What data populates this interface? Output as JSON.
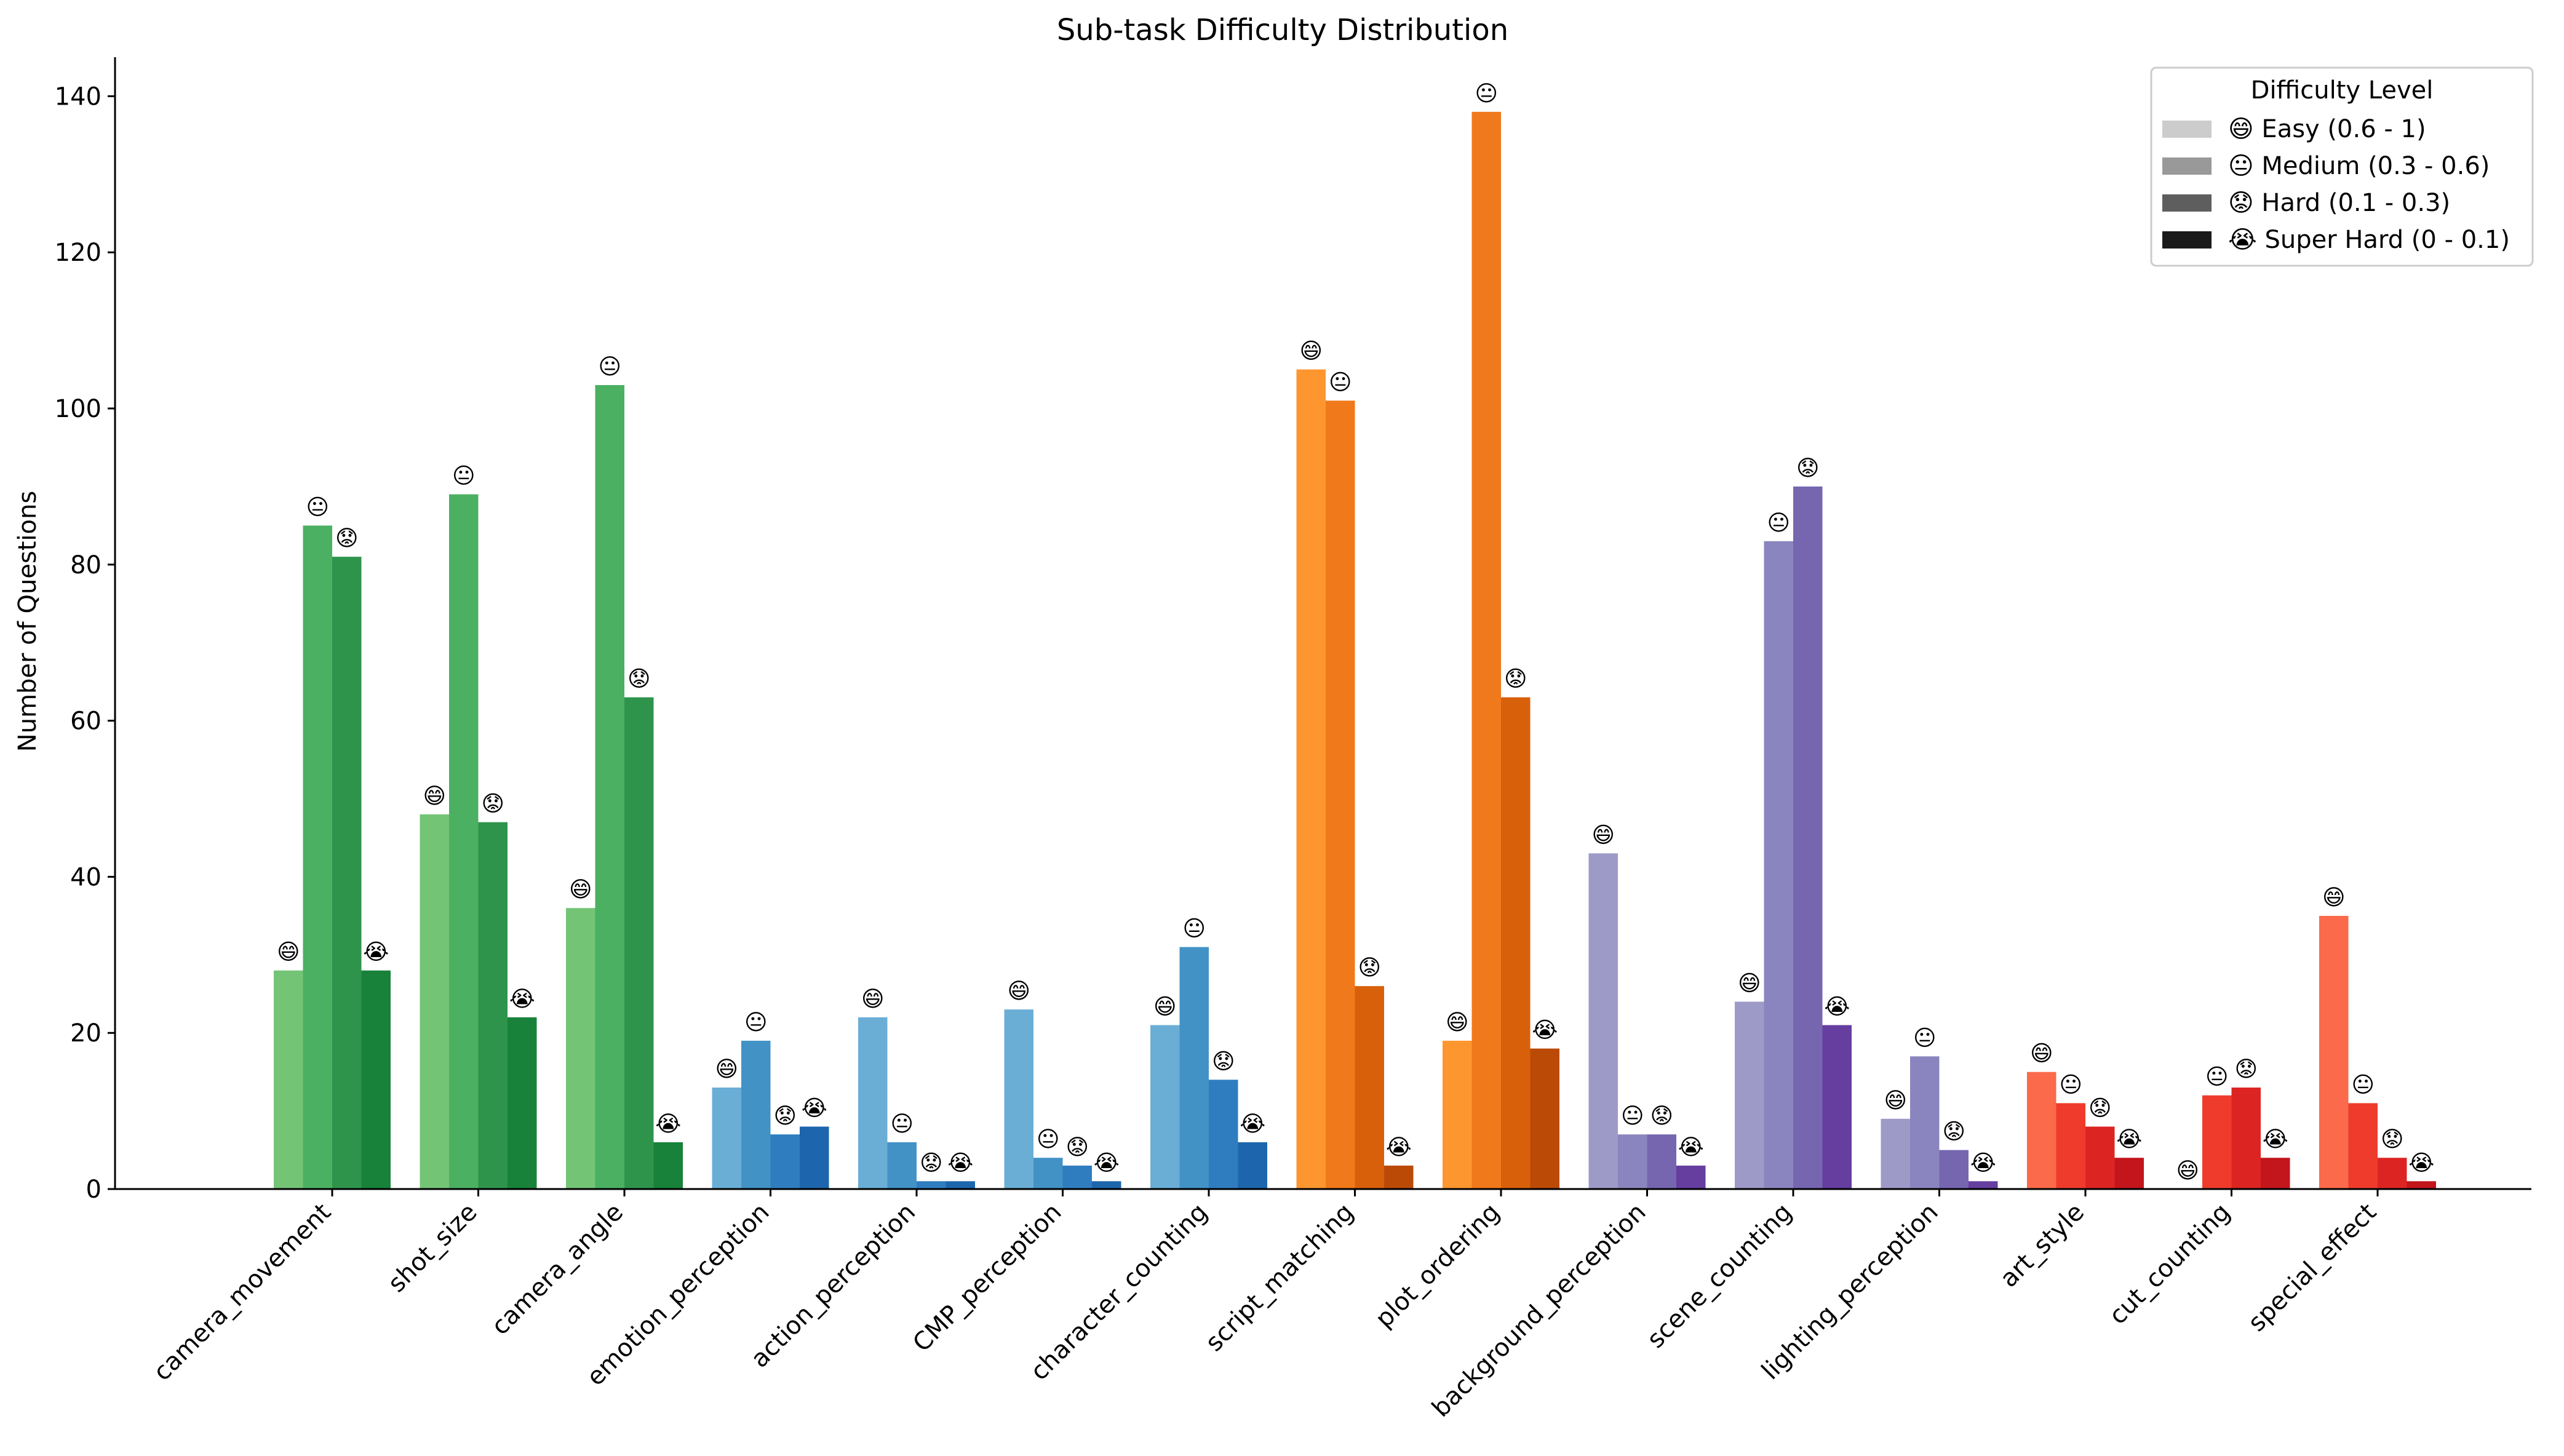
{
  "chart_data": {
    "type": "bar",
    "title": "Sub-task Difficulty Distribution",
    "xlabel": "",
    "ylabel": "Number of Questions",
    "ylim": [
      0,
      145
    ],
    "yticks": [
      0,
      20,
      40,
      60,
      80,
      100,
      120,
      140
    ],
    "grid": false,
    "legend_position": "top-right",
    "legend_title": "Difficulty Level",
    "categories": [
      "camera_movement",
      "shot_size",
      "camera_angle",
      "emotion_perception",
      "action_perception",
      "CMP_perception",
      "character_counting",
      "script_matching",
      "plot_ordering",
      "background_perception",
      "scene_counting",
      "lighting_perception",
      "art_style",
      "cut_counting",
      "special_effect"
    ],
    "series": [
      {
        "name": "😄 Easy (0.6 - 1)",
        "emoji": "😄",
        "legend_color": "#cccccc",
        "values": [
          28,
          48,
          36,
          13,
          22,
          23,
          21,
          105,
          19,
          43,
          24,
          9,
          15,
          0,
          35
        ]
      },
      {
        "name": "😐 Medium (0.3 - 0.6)",
        "emoji": "😐",
        "legend_color": "#999999",
        "values": [
          85,
          89,
          103,
          19,
          6,
          4,
          31,
          101,
          138,
          7,
          83,
          17,
          11,
          12,
          11
        ]
      },
      {
        "name": "😟 Hard (0.1 - 0.3)",
        "emoji": "😟",
        "legend_color": "#5e5e5e",
        "values": [
          81,
          47,
          63,
          7,
          1,
          3,
          14,
          26,
          63,
          7,
          90,
          5,
          8,
          13,
          4
        ]
      },
      {
        "name": "😭 Super Hard (0 - 0.1)",
        "emoji": "😭",
        "legend_color": "#1a1a1a",
        "values": [
          28,
          22,
          6,
          8,
          1,
          1,
          6,
          3,
          18,
          3,
          21,
          1,
          4,
          4,
          1
        ]
      }
    ],
    "category_colors": [
      [
        "#74c476",
        "#4bb062",
        "#2e944c",
        "#18823a"
      ],
      [
        "#74c476",
        "#4bb062",
        "#2e944c",
        "#18823a"
      ],
      [
        "#74c476",
        "#4bb062",
        "#2e944c",
        "#18823a"
      ],
      [
        "#6aaed6",
        "#4292c6",
        "#2f7dbf",
        "#1d66ad"
      ],
      [
        "#6aaed6",
        "#4292c6",
        "#2f7dbf",
        "#1d66ad"
      ],
      [
        "#6aaed6",
        "#4292c6",
        "#2f7dbf",
        "#1d66ad"
      ],
      [
        "#6aaed6",
        "#4292c6",
        "#2f7dbf",
        "#1d66ad"
      ],
      [
        "#fd962f",
        "#f0791b",
        "#d9600b",
        "#bb4a07"
      ],
      [
        "#fd962f",
        "#f0791b",
        "#d9600b",
        "#bb4a07"
      ],
      [
        "#9e9ac8",
        "#8a85be",
        "#7666b0",
        "#653ea0"
      ],
      [
        "#9e9ac8",
        "#8a85be",
        "#7666b0",
        "#653ea0"
      ],
      [
        "#9e9ac8",
        "#8a85be",
        "#7666b0",
        "#653ea0"
      ],
      [
        "#fb6a4a",
        "#ef3b2c",
        "#dc2523",
        "#c2161c"
      ],
      [
        "#fb6a4a",
        "#ef3b2c",
        "#dc2523",
        "#c2161c"
      ],
      [
        "#fb6a4a",
        "#ef3b2c",
        "#dc2523",
        "#c2161c"
      ]
    ]
  }
}
